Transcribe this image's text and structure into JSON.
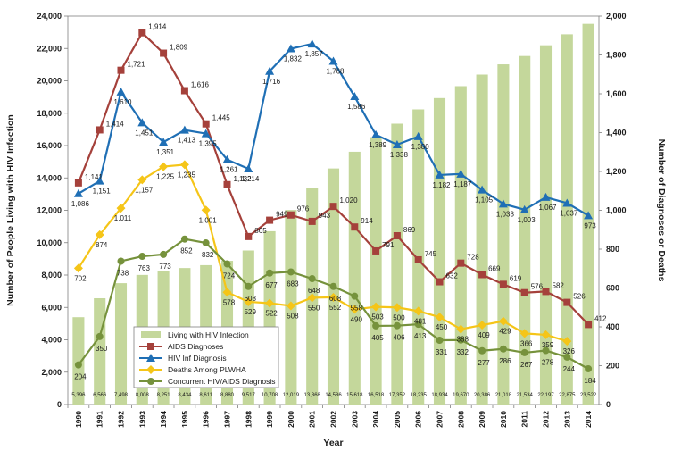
{
  "chart_data": {
    "type": "bar+line",
    "xlabel": "Year",
    "ylabel_left": "Number of People Living with HIV Infection",
    "ylabel_right": "Number of Diagnoses or Deaths",
    "ylim_left": [
      0,
      24000
    ],
    "ylim_right": [
      0,
      2000
    ],
    "yticks_left": [
      "0",
      "2,000",
      "4,000",
      "6,000",
      "8,000",
      "10,000",
      "12,000",
      "14,000",
      "16,000",
      "18,000",
      "20,000",
      "22,000",
      "24,000"
    ],
    "yticks_right": [
      "0",
      "200",
      "400",
      "600",
      "800",
      "1,000",
      "1,200",
      "1,400",
      "1,600",
      "1,800",
      "2,000"
    ],
    "grid": false,
    "legend_position": "bottom-left",
    "categories": [
      "1990",
      "1991",
      "1992",
      "1993",
      "1994",
      "1995",
      "1996",
      "1997",
      "1998",
      "1999",
      "2000",
      "2001",
      "2002",
      "2003",
      "2004",
      "2005",
      "2006",
      "2007",
      "2008",
      "2009",
      "2010",
      "2011",
      "2012",
      "2013",
      "2014"
    ],
    "bars": {
      "name": "Living with HIV Infection",
      "axis": "left",
      "color": "#c4d79b",
      "values": [
        5396,
        6566,
        7498,
        8008,
        8251,
        8434,
        8611,
        8880,
        9517,
        10708,
        12019,
        13368,
        14586,
        15618,
        16518,
        17352,
        18235,
        18934,
        19670,
        20386,
        21018,
        21534,
        22197,
        22875,
        23522
      ],
      "labels": [
        "5,396",
        "6,566",
        "7,498",
        "8,008",
        "8,251",
        "8,434",
        "8,611",
        "8,880",
        "9,517",
        "10,708",
        "12,019",
        "13,368",
        "14,586",
        "15,618",
        "16,518",
        "17,352",
        "18,235",
        "18,934",
        "19,670",
        "20,386",
        "21,018",
        "21,534",
        "22,197",
        "22,875",
        "23,522"
      ]
    },
    "series": [
      {
        "name": "AIDS Diagnoses",
        "axis": "right",
        "color": "#a5413b",
        "marker": "square",
        "values": [
          1141,
          1414,
          1721,
          1914,
          1809,
          1616,
          1445,
          1132,
          865,
          949,
          976,
          943,
          1020,
          914,
          791,
          869,
          745,
          632,
          728,
          669,
          619,
          576,
          582,
          526,
          412
        ],
        "labels": [
          "1,141",
          "1,414",
          "1,721",
          "1,914",
          "1,809",
          "1,616",
          "1,445",
          "1,132",
          "865",
          "949",
          "976",
          "943",
          "1,020",
          "914",
          "791",
          "869",
          "745",
          "632",
          "728",
          "669",
          "619",
          "576",
          "582",
          "526",
          "412"
        ]
      },
      {
        "name": "HIV Inf Diagnosis",
        "axis": "right",
        "color": "#1f6fb5",
        "marker": "triangle",
        "values": [
          1086,
          1151,
          1610,
          1451,
          1351,
          1413,
          1395,
          1261,
          1214,
          1716,
          1832,
          1857,
          1768,
          1586,
          1389,
          1338,
          1380,
          1182,
          1187,
          1105,
          1033,
          1003,
          1067,
          1037,
          973
        ],
        "labels": [
          "1,086",
          "1,151",
          "1,610",
          "1,451",
          "1,351",
          "1,413",
          "1,395",
          "1,261",
          "1,214",
          "1,716",
          "1,832",
          "1,857",
          "1,768",
          "1,586",
          "1,389",
          "1,338",
          "1,380",
          "1,182",
          "1,187",
          "1,105",
          "1,033",
          "1,003",
          "1,067",
          "1,037",
          "973"
        ]
      },
      {
        "name": "Deaths Among PLWHA",
        "axis": "right",
        "color": "#f5c518",
        "marker": "diamond",
        "values": [
          702,
          874,
          1011,
          1157,
          1225,
          1235,
          1001,
          578,
          529,
          522,
          508,
          550,
          552,
          490,
          503,
          500,
          481,
          450,
          388,
          409,
          429,
          366,
          359,
          326,
          null
        ],
        "labels": [
          "702",
          "874",
          "1,011",
          "1,157",
          "1,225",
          "1,235",
          "1,001",
          "578",
          "529",
          "522",
          "508",
          "550",
          "552",
          "490",
          "503",
          "500",
          "481",
          "450",
          "388",
          "409",
          "429",
          "366",
          "359",
          "326",
          ""
        ]
      },
      {
        "name": "Concurrent HIV/AIDS Diagnosis",
        "axis": "right",
        "color": "#76923c",
        "marker": "circle",
        "values": [
          204,
          350,
          738,
          763,
          773,
          852,
          832,
          724,
          608,
          677,
          683,
          648,
          608,
          558,
          405,
          406,
          413,
          331,
          332,
          277,
          286,
          267,
          278,
          244,
          184
        ],
        "labels": [
          "204",
          "350",
          "738",
          "763",
          "773",
          "852",
          "832",
          "724",
          "608",
          "677",
          "683",
          "648",
          "608",
          "558",
          "405",
          "406",
          "413",
          "331",
          "332",
          "277",
          "286",
          "267",
          "278",
          "244",
          "184"
        ]
      }
    ]
  }
}
